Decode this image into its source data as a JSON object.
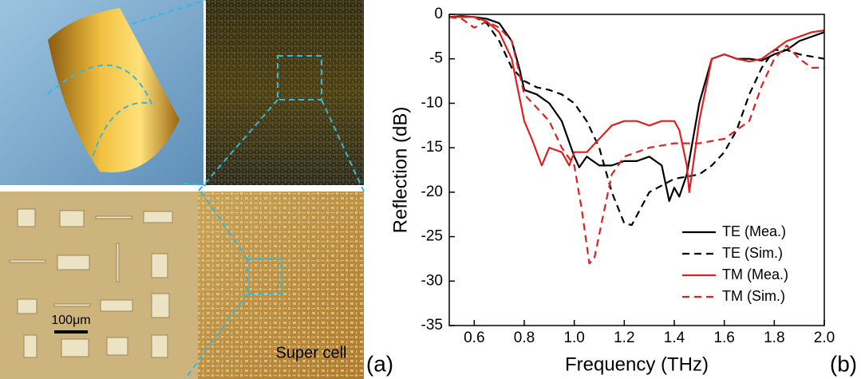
{
  "figure_labels": {
    "panel_a": "(a)",
    "panel_b": "(b)",
    "scale_bar": "100μm",
    "super_cell": "Super cell"
  },
  "chart_data": {
    "type": "line",
    "xlabel": "Frequency (THz)",
    "ylabel": "Reflection (dB)",
    "xlim": [
      0.5,
      2.0
    ],
    "xticks": [
      0.6,
      0.8,
      {
        "value": 1,
        "label": "1.0"
      },
      1.2,
      1.4,
      1.6,
      1.8,
      {
        "value": 2,
        "label": "2.0"
      }
    ],
    "ylim": [
      -35,
      0
    ],
    "yticks": [
      0,
      -5,
      -10,
      -15,
      -20,
      -25,
      -30,
      -35
    ],
    "legend": "lower right",
    "series": [
      {
        "name": "TE (Mea.)",
        "color": "#000000",
        "dash": false,
        "x": [
          0.5,
          0.55,
          0.6,
          0.65,
          0.7,
          0.75,
          0.78,
          0.8,
          0.85,
          0.9,
          0.95,
          1.0,
          1.02,
          1.05,
          1.1,
          1.15,
          1.2,
          1.25,
          1.3,
          1.35,
          1.38,
          1.4,
          1.42,
          1.45,
          1.5,
          1.55,
          1.6,
          1.65,
          1.7,
          1.75,
          1.8,
          1.85,
          1.9,
          1.95,
          2.0
        ],
        "values": [
          -0.3,
          -0.2,
          -0.3,
          -0.5,
          -1,
          -3,
          -6,
          -8.5,
          -9,
          -10,
          -12,
          -16,
          -17.2,
          -16,
          -17,
          -17,
          -16.5,
          -16.5,
          -16,
          -17,
          -21,
          -19.5,
          -20.5,
          -18,
          -10,
          -5,
          -4.5,
          -5,
          -5,
          -5.2,
          -4.5,
          -4,
          -3,
          -2.5,
          -2
        ]
      },
      {
        "name": "TE (Sim.)",
        "color": "#000000",
        "dash": true,
        "x": [
          0.5,
          0.6,
          0.65,
          0.7,
          0.75,
          0.8,
          0.85,
          0.9,
          0.95,
          1.0,
          1.05,
          1.1,
          1.15,
          1.2,
          1.23,
          1.3,
          1.4,
          1.5,
          1.55,
          1.6,
          1.65,
          1.7,
          1.75,
          1.8,
          1.85,
          1.9,
          2.0
        ],
        "values": [
          -0.3,
          -0.3,
          -1,
          -3,
          -6,
          -7.5,
          -8.2,
          -8.5,
          -9,
          -10,
          -12,
          -15,
          -20,
          -23.5,
          -23.7,
          -20,
          -18.5,
          -18,
          -17,
          -15.5,
          -13,
          -9,
          -6,
          -4,
          -4,
          -4.5,
          -5
        ]
      },
      {
        "name": "TM (Mea.)",
        "color": "#e02020",
        "dash": false,
        "x": [
          0.5,
          0.6,
          0.65,
          0.7,
          0.75,
          0.8,
          0.83,
          0.87,
          0.9,
          0.95,
          0.98,
          1.0,
          1.05,
          1.1,
          1.15,
          1.2,
          1.25,
          1.3,
          1.35,
          1.4,
          1.42,
          1.45,
          1.46,
          1.5,
          1.55,
          1.6,
          1.65,
          1.7,
          1.75,
          1.8,
          1.85,
          1.9,
          1.95,
          2.0
        ],
        "values": [
          -0.3,
          -0.3,
          -0.8,
          -2,
          -5,
          -12,
          -14,
          -17,
          -15,
          -15.5,
          -17,
          -15.5,
          -15.5,
          -14,
          -12.5,
          -12,
          -12,
          -12.5,
          -12,
          -12,
          -13,
          -17,
          -20,
          -12,
          -5,
          -4.5,
          -5,
          -5.3,
          -5,
          -4,
          -3,
          -2.5,
          -2,
          -1.8
        ]
      },
      {
        "name": "TM (Sim.)",
        "color": "#e02020",
        "dash": true,
        "x": [
          0.5,
          0.55,
          0.6,
          0.65,
          0.7,
          0.75,
          0.8,
          0.85,
          0.9,
          0.95,
          1.0,
          1.03,
          1.06,
          1.08,
          1.12,
          1.15,
          1.2,
          1.3,
          1.4,
          1.5,
          1.6,
          1.7,
          1.75,
          1.8,
          1.85,
          1.9,
          1.95,
          2.0
        ],
        "values": [
          -0.3,
          -0.5,
          -1.5,
          -0.8,
          -1.5,
          -3,
          -9,
          -10.5,
          -12,
          -15,
          -17,
          -22,
          -28,
          -27.5,
          -22,
          -18,
          -16,
          -15,
          -14.5,
          -14.5,
          -14,
          -12,
          -8,
          -5,
          -3.5,
          -5,
          -6,
          -6
        ]
      }
    ]
  }
}
